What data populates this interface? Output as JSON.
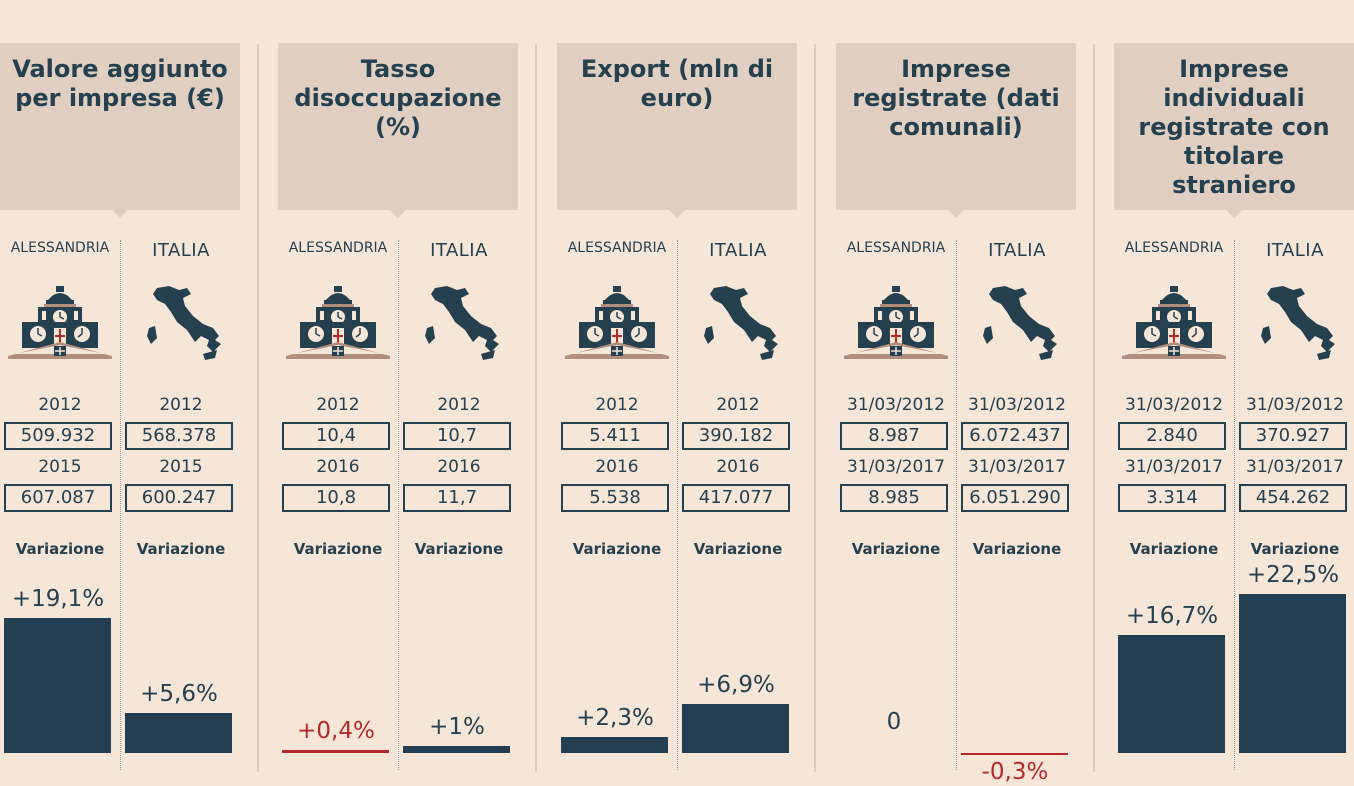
{
  "chart_data": [
    {
      "type": "bar",
      "title": "Valore aggiunto per impresa (€)",
      "columns": [
        {
          "region": "ALESSANDRIA",
          "year1": "2012",
          "value1": "509.932",
          "year2": "2015",
          "value2": "607.087",
          "variation_label": "Variazione",
          "variation": 19.1,
          "variation_text": "+19,1%"
        },
        {
          "region": "ITALIA",
          "year1": "2012",
          "value1": "568.378",
          "year2": "2015",
          "value2": "600.247",
          "variation_label": "Variazione",
          "variation": 5.6,
          "variation_text": "+5,6%"
        }
      ]
    },
    {
      "type": "bar",
      "title": "Tasso disoccupazione (%)",
      "columns": [
        {
          "region": "ALESSANDRIA",
          "year1": "2012",
          "value1": "10,4",
          "year2": "2016",
          "value2": "10,8",
          "variation_label": "Variazione",
          "variation": 0.4,
          "variation_text": "+0,4%",
          "highlight": "#b5282a"
        },
        {
          "region": "ITALIA",
          "year1": "2012",
          "value1": "10,7",
          "year2": "2016",
          "value2": "11,7",
          "variation_label": "Variazione",
          "variation": 1,
          "variation_text": "+1%"
        }
      ]
    },
    {
      "type": "bar",
      "title": "Export (mln di euro)",
      "columns": [
        {
          "region": "ALESSANDRIA",
          "year1": "2012",
          "value1": "5.411",
          "year2": "2016",
          "value2": "5.538",
          "variation_label": "Variazione",
          "variation": 2.3,
          "variation_text": "+2,3%"
        },
        {
          "region": "ITALIA",
          "year1": "2012",
          "value1": "390.182",
          "year2": "2016",
          "value2": "417.077",
          "variation_label": "Variazione",
          "variation": 6.9,
          "variation_text": "+6,9%"
        }
      ]
    },
    {
      "type": "bar",
      "title": "Imprese registrate (dati comunali)",
      "columns": [
        {
          "region": "ALESSANDRIA",
          "year1": "31/03/2012",
          "value1": "8.987",
          "year2": "31/03/2017",
          "value2": "8.985",
          "variation_label": "Variazione",
          "variation": 0,
          "variation_text": "0"
        },
        {
          "region": "ITALIA",
          "year1": "31/03/2012",
          "value1": "6.072.437",
          "year2": "31/03/2017",
          "value2": "6.051.290",
          "variation_label": "Variazione",
          "variation": -0.3,
          "variation_text": "-0,3%",
          "highlight": "#b5282a"
        }
      ]
    },
    {
      "type": "bar",
      "title": "Imprese individuali registrate con titolare straniero",
      "columns": [
        {
          "region": "ALESSANDRIA",
          "year1": "31/03/2012",
          "value1": "2.840",
          "year2": "31/03/2017",
          "value2": "3.314",
          "variation_label": "Variazione",
          "variation": 16.7,
          "variation_text": "+16,7%"
        },
        {
          "region": "ITALIA",
          "year1": "31/03/2012",
          "value1": "370.927",
          "year2": "31/03/2017",
          "value2": "454.262",
          "variation_label": "Variazione",
          "variation": 22.5,
          "variation_text": "+22,5%"
        }
      ]
    }
  ],
  "colors": {
    "bar": "#243f51",
    "negative": "#b5282a",
    "header": "#e0cfc0",
    "background": "#f6e6d7"
  },
  "icons": {
    "left": "town-hall-clock-icon",
    "right": "italy-map-icon"
  }
}
